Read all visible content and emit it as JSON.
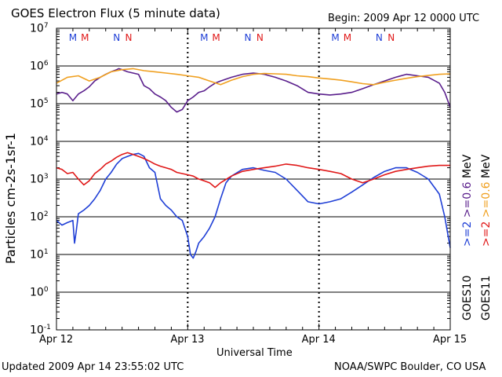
{
  "header": {
    "title": "GOES Electron Flux (5 minute data)",
    "begin": "Begin: 2009 Apr 12 0000 UTC"
  },
  "footer": {
    "updated": "Updated 2009 Apr 14 23:55:02 UTC",
    "credit": "NOAA/SWPC Boulder, CO USA"
  },
  "legend": {
    "goes10_label": "GOES10",
    "goes11_label": "GOES11",
    "goes10_high": ">=2",
    "goes10_low": ">=0.6",
    "goes11_high": ">=2",
    "goes11_low": ">=0.6",
    "unit": "MeV"
  },
  "colors": {
    "goes10_high": "#1f3fd6",
    "goes10_low": "#5a1f8c",
    "goes11_high": "#e01818",
    "goes11_low": "#f0a020",
    "marker_M": "#1f3fd6",
    "marker_N": "#e01818"
  },
  "chart_data": {
    "type": "line",
    "title": "GOES Electron Flux (5 minute data)",
    "xlabel": "Universal Time",
    "ylabel": "Particles cm-2s-1sr-1",
    "x_ticks": [
      "Apr 12",
      "Apr 13",
      "Apr 14",
      "Apr 15"
    ],
    "xlim": [
      0,
      72
    ],
    "ylim_log10": [
      -1,
      7
    ],
    "y_scale": "log",
    "y_tick_exponents": [
      7,
      6,
      5,
      4,
      3,
      2,
      1,
      0,
      -1
    ],
    "threshold_line": 1000,
    "grid": "horizontal decades; vertical dashed day separators",
    "local_time_markers": [
      {
        "label": "M",
        "color": "blue",
        "hour": 3.0
      },
      {
        "label": "M",
        "color": "red",
        "hour": 5.2
      },
      {
        "label": "N",
        "color": "blue",
        "hour": 11.0
      },
      {
        "label": "N",
        "color": "red",
        "hour": 13.2
      },
      {
        "label": "M",
        "color": "blue",
        "hour": 27.0
      },
      {
        "label": "M",
        "color": "red",
        "hour": 29.2
      },
      {
        "label": "N",
        "color": "blue",
        "hour": 35.0
      },
      {
        "label": "N",
        "color": "red",
        "hour": 37.2
      },
      {
        "label": "M",
        "color": "blue",
        "hour": 51.0
      },
      {
        "label": "M",
        "color": "red",
        "hour": 53.2
      },
      {
        "label": "N",
        "color": "blue",
        "hour": 59.0
      },
      {
        "label": "N",
        "color": "red",
        "hour": 61.2
      }
    ],
    "series": [
      {
        "name": "GOES10 >=0.6 MeV",
        "color": "#5a1f8c",
        "x": [
          0,
          1,
          2,
          3,
          4,
          5,
          6,
          7,
          8,
          9,
          10,
          11,
          11.4,
          12,
          13,
          14,
          15,
          16,
          17,
          18,
          19,
          20,
          21,
          22,
          23,
          24,
          25,
          26,
          27,
          28,
          29,
          30,
          32,
          34,
          36,
          38,
          40,
          42,
          44,
          46,
          48,
          50,
          52,
          54,
          56,
          58,
          60,
          62,
          64,
          66,
          68,
          70,
          71,
          72
        ],
        "y": [
          180000,
          200000,
          180000,
          120000,
          180000,
          220000,
          280000,
          400000,
          500000,
          600000,
          700000,
          800000,
          850000,
          800000,
          700000,
          650000,
          600000,
          300000,
          250000,
          180000,
          150000,
          120000,
          80000,
          60000,
          70000,
          120000,
          150000,
          200000,
          220000,
          280000,
          350000,
          400000,
          500000,
          600000,
          650000,
          600000,
          500000,
          400000,
          300000,
          200000,
          180000,
          170000,
          180000,
          200000,
          250000,
          320000,
          400000,
          500000,
          600000,
          550000,
          500000,
          350000,
          200000,
          80000
        ]
      },
      {
        "name": "GOES11 >=0.6 MeV",
        "color": "#f0a020",
        "x": [
          0,
          2,
          4,
          6,
          8,
          10,
          12,
          14,
          16,
          18,
          20,
          22,
          24,
          26,
          28,
          30,
          32,
          34,
          36,
          38,
          40,
          42,
          44,
          46,
          48,
          50,
          52,
          54,
          56,
          58,
          60,
          62,
          64,
          66,
          68,
          70,
          72
        ],
        "y": [
          350000,
          500000,
          550000,
          400000,
          500000,
          700000,
          800000,
          850000,
          750000,
          700000,
          650000,
          600000,
          550000,
          500000,
          400000,
          320000,
          420000,
          520000,
          600000,
          630000,
          620000,
          600000,
          550000,
          520000,
          480000,
          450000,
          420000,
          380000,
          340000,
          320000,
          370000,
          420000,
          470000,
          520000,
          560000,
          600000,
          620000
        ]
      },
      {
        "name": "GOES10 >=2 MeV",
        "color": "#1f3fd6",
        "x": [
          0,
          1,
          2,
          3,
          3.3,
          3.6,
          4,
          5,
          6,
          7,
          8,
          9,
          10,
          11,
          12,
          13,
          14,
          15,
          16,
          17,
          18,
          19,
          20,
          21,
          22,
          23,
          24,
          24.5,
          25,
          25.5,
          26,
          27,
          28,
          29,
          30,
          31,
          32,
          34,
          36,
          38,
          40,
          42,
          44,
          46,
          48,
          50,
          52,
          54,
          56,
          58,
          60,
          62,
          64,
          66,
          68,
          70,
          71,
          72
        ],
        "y": [
          80,
          60,
          70,
          80,
          20,
          40,
          120,
          150,
          200,
          300,
          500,
          1000,
          1500,
          2500,
          3500,
          4000,
          4500,
          4800,
          4000,
          2000,
          1500,
          300,
          200,
          150,
          100,
          80,
          30,
          10,
          8,
          12,
          20,
          30,
          50,
          100,
          300,
          800,
          1200,
          1800,
          2000,
          1700,
          1500,
          1000,
          500,
          250,
          220,
          250,
          300,
          450,
          700,
          1100,
          1600,
          2000,
          2000,
          1500,
          1000,
          400,
          100,
          15
        ]
      },
      {
        "name": "GOES11 >=2 MeV",
        "color": "#e01818",
        "x": [
          0,
          1,
          2,
          3,
          4,
          5,
          6,
          7,
          8,
          9,
          10,
          11,
          12,
          13,
          14,
          15,
          16,
          17,
          18,
          19,
          20,
          21,
          22,
          23,
          24,
          25,
          26,
          27,
          28,
          29,
          30,
          32,
          34,
          36,
          38,
          40,
          42,
          44,
          46,
          48,
          50,
          52,
          54,
          56,
          58,
          60,
          62,
          64,
          66,
          68,
          70,
          72
        ],
        "y": [
          2000,
          1800,
          1400,
          1500,
          1000,
          700,
          900,
          1400,
          1800,
          2500,
          3000,
          3800,
          4500,
          5000,
          4500,
          4000,
          3500,
          3000,
          2500,
          2200,
          2000,
          1800,
          1500,
          1400,
          1300,
          1200,
          1000,
          900,
          800,
          600,
          800,
          1200,
          1600,
          1800,
          2000,
          2200,
          2500,
          2300,
          2000,
          1800,
          1600,
          1400,
          1000,
          800,
          1000,
          1300,
          1600,
          1800,
          2000,
          2200,
          2300,
          2300
        ]
      }
    ]
  }
}
